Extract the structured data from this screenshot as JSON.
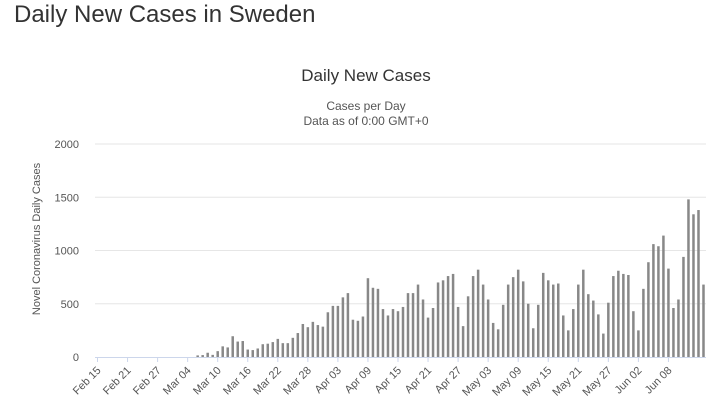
{
  "page": {
    "heading": "Daily New Cases in Sweden"
  },
  "chart_data": {
    "type": "bar",
    "title": "Daily New Cases",
    "subtitle": "Cases per Day",
    "subtitle2": "Data as of 0:00 GMT+0",
    "xlabel": "",
    "ylabel": "Novel Coronavirus Daily Cases",
    "ylim": [
      0,
      2000
    ],
    "yticks": [
      0,
      500,
      1000,
      1500,
      2000
    ],
    "grid": true,
    "legend": "none",
    "colors": {
      "bar": "#888888",
      "grid": "#e6e6e6",
      "axis": "#ccd6eb"
    },
    "xtick_labels": [
      "Feb 15",
      "Feb 21",
      "Feb 27",
      "Mar 04",
      "Mar 10",
      "Mar 16",
      "Mar 22",
      "Mar 28",
      "Apr 03",
      "Apr 09",
      "Apr 15",
      "Apr 21",
      "Apr 27",
      "May 03",
      "May 09",
      "May 15",
      "May 21",
      "May 27",
      "Jun 02",
      "Jun 08"
    ],
    "start_date": "2020-02-15",
    "series": [
      {
        "name": "Daily Cases",
        "values": [
          0,
          0,
          0,
          0,
          0,
          0,
          0,
          0,
          0,
          0,
          0,
          0,
          0,
          0,
          0,
          0,
          0,
          0,
          0,
          0,
          15,
          18,
          40,
          20,
          55,
          100,
          90,
          195,
          145,
          150,
          70,
          65,
          80,
          120,
          125,
          140,
          170,
          130,
          130,
          180,
          225,
          310,
          280,
          330,
          300,
          285,
          420,
          480,
          480,
          560,
          600,
          350,
          340,
          380,
          740,
          650,
          640,
          450,
          390,
          450,
          430,
          470,
          600,
          600,
          680,
          540,
          370,
          460,
          700,
          720,
          760,
          780,
          470,
          290,
          570,
          760,
          820,
          680,
          540,
          320,
          260,
          490,
          680,
          750,
          820,
          710,
          500,
          270,
          490,
          790,
          720,
          680,
          690,
          390,
          250,
          450,
          680,
          820,
          590,
          530,
          400,
          220,
          510,
          760,
          810,
          780,
          770,
          430,
          250,
          640,
          890,
          1060,
          1040,
          1140,
          830,
          460,
          540,
          940,
          1480,
          1340,
          1380,
          680
        ]
      }
    ]
  }
}
